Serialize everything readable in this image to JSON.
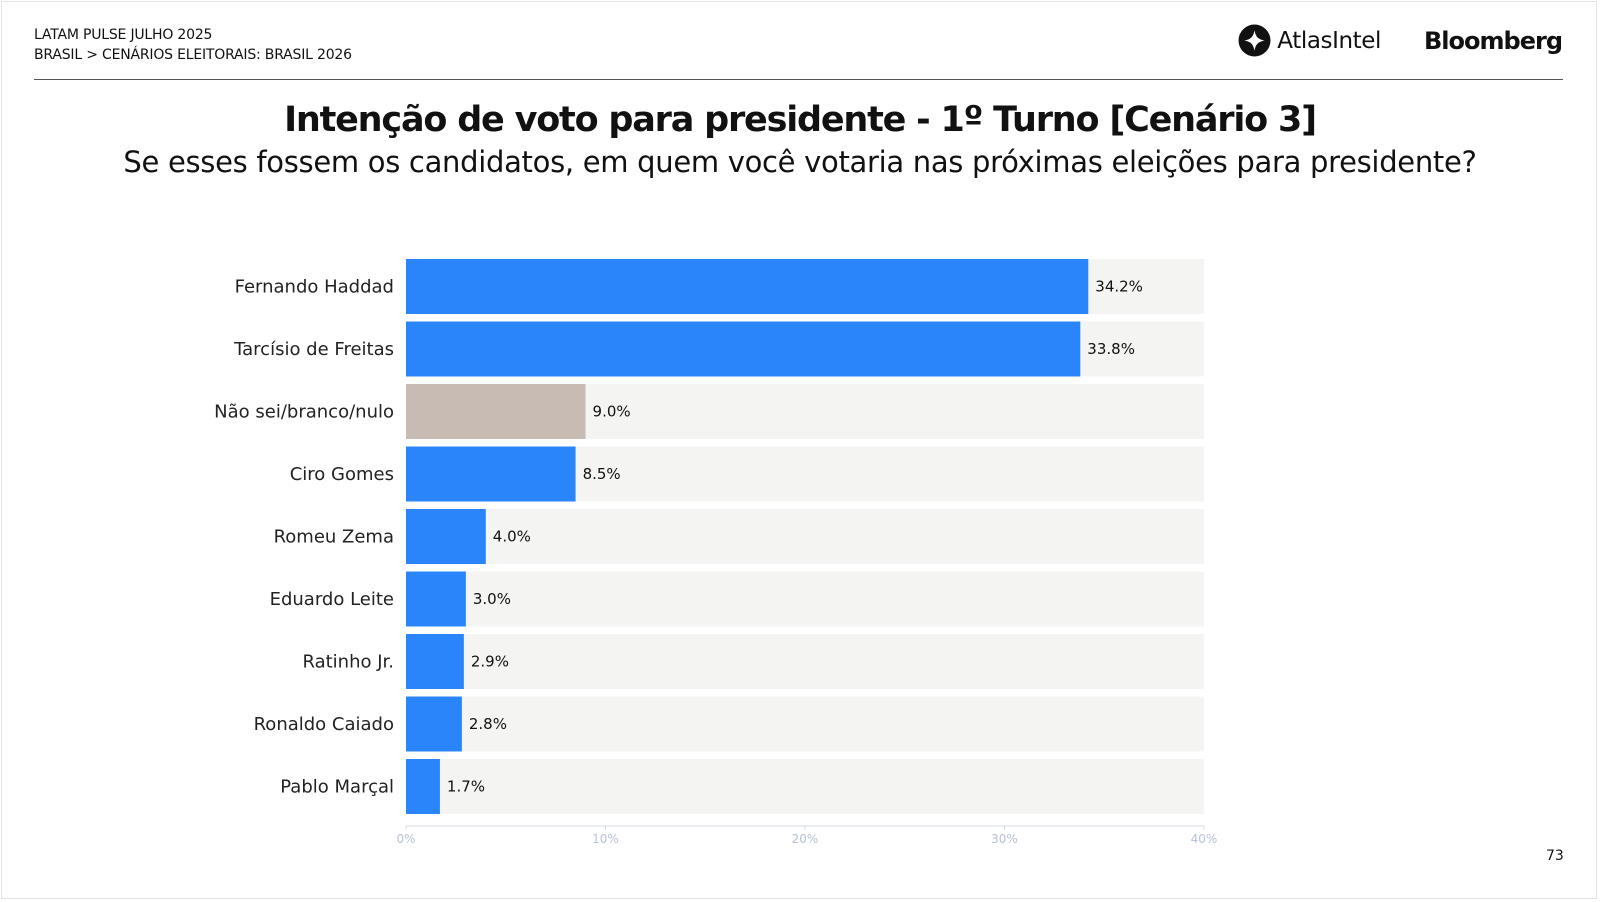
{
  "header": {
    "line1": "LATAM PULSE JULHO 2025",
    "line2": "BRASIL > CENÁRIOS ELEITORAIS: BRASIL 2026",
    "atlas_logo_text": "AtlasIntel",
    "atlas_icon": "atlasintel-logo-icon",
    "bloomberg_logo_text": "Bloomberg"
  },
  "page_number": "73",
  "colors": {
    "bar": "#2a85fb",
    "bar_undecided": "#c8bbb3",
    "track": "#f4f4f3",
    "axis": "#d6dbe5",
    "tick_text": "#b8c2d6"
  },
  "chart_data": {
    "type": "bar",
    "orientation": "horizontal",
    "title": "Intenção de voto para presidente - 1º Turno [Cenário 3]",
    "subtitle": "Se esses fossem os candidatos, em quem você votaria nas próximas eleições para presidente?",
    "categories": [
      "Fernando Haddad",
      "Tarcísio de Freitas",
      "Não sei/branco/nulo",
      "Ciro Gomes",
      "Romeu Zema",
      "Eduardo Leite",
      "Ratinho Jr.",
      "Ronaldo Caiado",
      "Pablo Marçal"
    ],
    "values": [
      34.2,
      33.8,
      9.0,
      8.5,
      4.0,
      3.0,
      2.9,
      2.8,
      1.7
    ],
    "value_labels": [
      "34.2%",
      "33.8%",
      "9.0%",
      "8.5%",
      "4.0%",
      "3.0%",
      "2.9%",
      "2.8%",
      "1.7%"
    ],
    "highlight_category": "Não sei/branco/nulo",
    "xlim": [
      0,
      40
    ],
    "xticks": [
      0,
      10,
      20,
      30,
      40
    ],
    "xtick_labels": [
      "0%",
      "10%",
      "20%",
      "30%",
      "40%"
    ],
    "grid": false,
    "legend": "none"
  }
}
